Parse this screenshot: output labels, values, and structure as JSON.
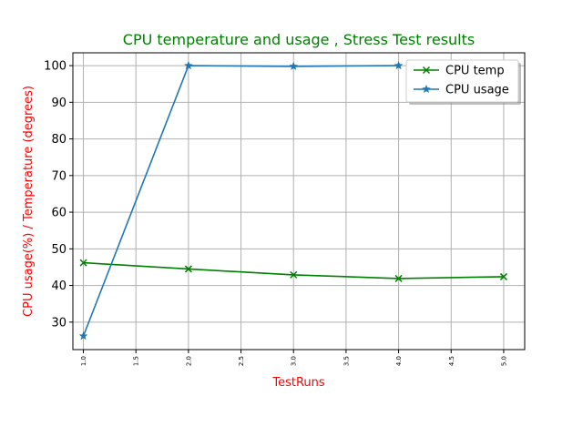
{
  "chart_data": {
    "type": "line",
    "title": "CPU temperature and usage , Stress Test results",
    "xlabel": "TestRuns",
    "ylabel": "CPU usage(%) / Temperature (degrees)",
    "xlim": [
      0.9,
      5.2
    ],
    "ylim": [
      22.5,
      103.5
    ],
    "xticks": [
      "1.0",
      "1.5",
      "2.0",
      "2.5",
      "3.0",
      "3.5",
      "4.0",
      "4.5",
      "5.0"
    ],
    "yticks": [
      "30",
      "40",
      "50",
      "60",
      "70",
      "80",
      "90",
      "100"
    ],
    "grid": true,
    "legend_position": "top-right",
    "series": [
      {
        "name": "CPU temp",
        "marker": "x",
        "color": "#008000",
        "x": [
          1,
          2,
          3,
          4,
          5
        ],
        "y": [
          46.2,
          44.5,
          42.9,
          41.9,
          42.4
        ]
      },
      {
        "name": "CPU usage",
        "marker": "star",
        "color": "#1f77b4",
        "x": [
          1,
          2,
          3,
          4
        ],
        "y": [
          26.2,
          100.0,
          99.8,
          100.0
        ]
      }
    ],
    "colors": {
      "title": "#008000",
      "axis_labels": "#ff0000",
      "grid": "#b0b0b0"
    }
  }
}
